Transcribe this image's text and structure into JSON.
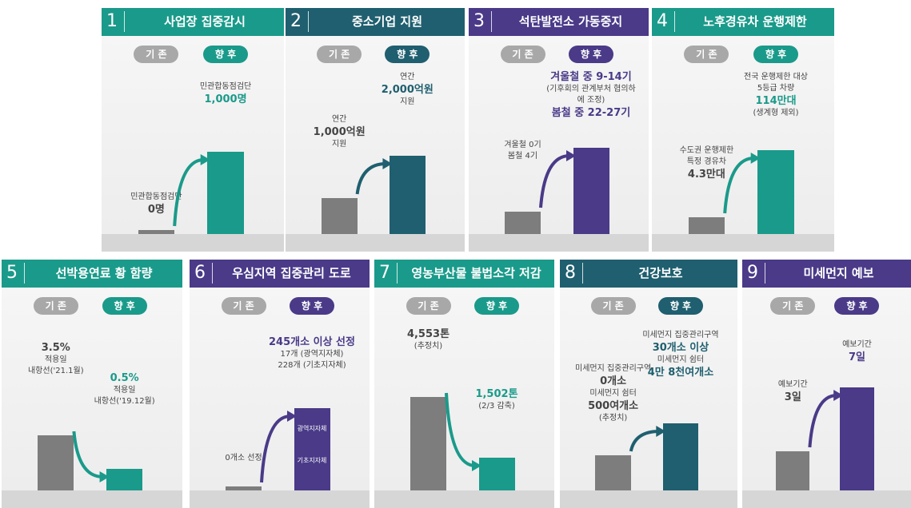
{
  "panels": [
    {
      "number": "1",
      "title": "사업장 집중감시",
      "before_label": "기 존",
      "after_label": "향 후",
      "before_text": [
        "민관합동점검단",
        "0명"
      ],
      "after_text": [
        "민관합동점검단",
        "1,000명"
      ]
    },
    {
      "number": "2",
      "title": "중소기업 지원",
      "before_label": "기 존",
      "after_label": "향 후",
      "before_text": [
        "연간",
        "1,000억원",
        "지원"
      ],
      "after_text": [
        "연간",
        "2,000억원",
        "지원"
      ]
    },
    {
      "number": "3",
      "title": "석탄발전소 가동중지",
      "before_label": "기 존",
      "after_label": "향 후",
      "before_text": [
        "겨울철 0기",
        "봄철 4기"
      ],
      "after_text": [
        "겨울철 중 9-14기",
        "(기후회의 관계부처 협의하에 조정)",
        "봄철 중 22-27기"
      ]
    },
    {
      "number": "4",
      "title": "노후경유차 운행제한",
      "before_label": "기 존",
      "after_label": "향 후",
      "before_text": [
        "수도권 운행제한",
        "특정 경유차",
        "4.3만대"
      ],
      "after_text": [
        "전국 운행제한 대상",
        "5등급 차량",
        "114만대",
        "(생계형 제외)"
      ]
    },
    {
      "number": "5",
      "title": "선박용연료 황 함량",
      "before_label": "기 존",
      "after_label": "향 후",
      "before_text": [
        "3.5%",
        "적용일",
        "내항선('21.1월)"
      ],
      "after_text": [
        "0.5%",
        "적용일",
        "내항선('19.12월)"
      ]
    },
    {
      "number": "6",
      "title": "우심지역 집중관리 도로",
      "before_label": "기 존",
      "after_label": "향 후",
      "before_text": [
        "0개소 선정"
      ],
      "after_text": [
        "245개소 이상 선정",
        "17개 (광역지자체)",
        "228개 (기초지자체)"
      ],
      "bar_text": [
        "광역지자체",
        "기초지자체"
      ]
    },
    {
      "number": "7",
      "title": "영농부산물 불법소각 저감",
      "before_label": "기 존",
      "after_label": "향 후",
      "before_text": [
        "4,553톤",
        "(추정치)"
      ],
      "after_text": [
        "1,502톤",
        "(2/3 감축)"
      ]
    },
    {
      "number": "8",
      "title": "건강보호",
      "before_label": "기 존",
      "after_label": "향 후",
      "before_text": [
        "미세먼지 집중관리구역",
        "0개소",
        "미세먼지 쉼터",
        "500여개소",
        "(추정치)"
      ],
      "after_text": [
        "미세먼지 집중관리구역",
        "30개소 이상",
        "미세먼지 쉼터",
        "4만 8천여개소"
      ]
    },
    {
      "number": "9",
      "title": "미세먼지 예보",
      "before_label": "기 존",
      "after_label": "향 후",
      "before_text": [
        "예보기간",
        "3일"
      ],
      "after_text": [
        "예보기간",
        "7일"
      ]
    }
  ]
}
